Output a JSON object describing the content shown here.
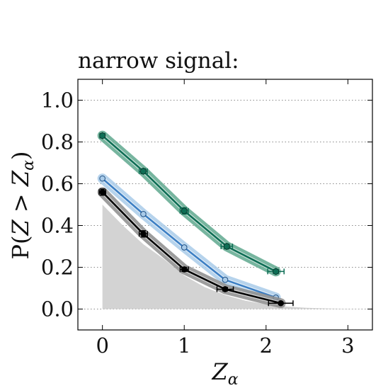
{
  "chart_data": {
    "type": "line",
    "title": "narrow signal:",
    "xlabel": "Z_α",
    "ylabel": "P(Z > Z_α)",
    "xlim": [
      -0.3,
      3.3
    ],
    "ylim": [
      -0.1,
      1.1
    ],
    "x_ticks": [
      "0",
      "1",
      "2",
      "3"
    ],
    "y_ticks": [
      "0.0",
      "0.2",
      "0.4",
      "0.6",
      "0.8",
      "1.0"
    ],
    "grid": "horizontal dotted",
    "background_area": {
      "x": [
        0,
        0.25,
        0.5,
        0.75,
        1.0,
        1.25,
        1.5,
        1.75,
        2.0,
        2.25,
        2.5,
        2.75,
        3.0,
        3.3
      ],
      "y": [
        0.5,
        0.4,
        0.31,
        0.24,
        0.16,
        0.105,
        0.067,
        0.04,
        0.023,
        0.012,
        0.006,
        0.003,
        0.0013,
        0.0005
      ],
      "color": "#d3d3d3"
    },
    "series": [
      {
        "color": "#0e6e55",
        "band_color": "#5fa88e",
        "marker": "hexagon",
        "points": [
          {
            "x": 0.0,
            "y": 0.83,
            "xerr": 0.03,
            "yerr": 0.01
          },
          {
            "x": 0.5,
            "y": 0.66,
            "xerr": 0.05,
            "yerr": 0.012
          },
          {
            "x": 1.0,
            "y": 0.47,
            "xerr": 0.05,
            "yerr": 0.015
          },
          {
            "x": 1.52,
            "y": 0.3,
            "xerr": 0.07,
            "yerr": 0.012
          },
          {
            "x": 2.12,
            "y": 0.18,
            "xerr": 0.1,
            "yerr": 0.01
          }
        ]
      },
      {
        "color": "#3c7fc4",
        "band_color": "#a9cbe9",
        "marker": "circle",
        "points": [
          {
            "x": 0.0,
            "y": 0.625,
            "xerr": 0.0,
            "yerr": 0.0
          },
          {
            "x": 0.5,
            "y": 0.455,
            "xerr": 0.0,
            "yerr": 0.0
          },
          {
            "x": 1.0,
            "y": 0.295,
            "xerr": 0.0,
            "yerr": 0.0
          },
          {
            "x": 1.5,
            "y": 0.14,
            "xerr": 0.0,
            "yerr": 0.0
          },
          {
            "x": 2.12,
            "y": 0.055,
            "xerr": 0.0,
            "yerr": 0.0
          }
        ]
      },
      {
        "color": "#000000",
        "band_color": "#8c8c8c",
        "marker": "circle",
        "points": [
          {
            "x": 0.0,
            "y": 0.56,
            "xerr": 0.04,
            "yerr": 0.015
          },
          {
            "x": 0.5,
            "y": 0.36,
            "xerr": 0.05,
            "yerr": 0.015
          },
          {
            "x": 1.0,
            "y": 0.19,
            "xerr": 0.05,
            "yerr": 0.01
          },
          {
            "x": 1.5,
            "y": 0.095,
            "xerr": 0.1,
            "yerr": 0.008
          },
          {
            "x": 2.18,
            "y": 0.028,
            "xerr": 0.15,
            "yerr": 0.005
          }
        ]
      }
    ]
  }
}
